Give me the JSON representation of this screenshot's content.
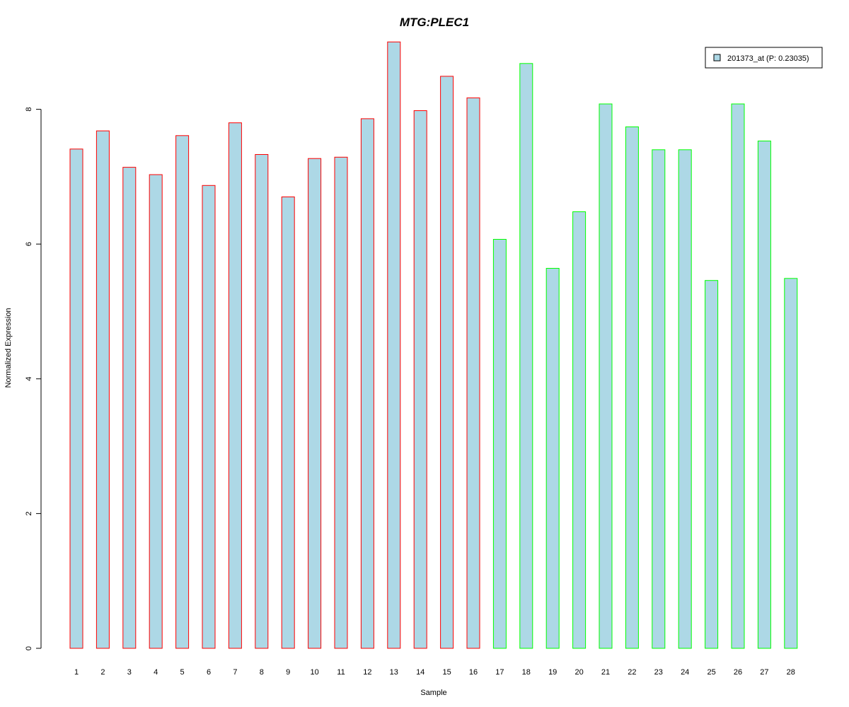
{
  "chart_data": {
    "type": "bar",
    "title": "MTG:PLEC1",
    "title_color": "#0000CC",
    "xlabel": "Sample",
    "ylabel": "Normalized Expression",
    "ylim": [
      0,
      9
    ],
    "yticks": [
      0,
      2,
      4,
      6,
      8
    ],
    "categories": [
      "1",
      "2",
      "3",
      "4",
      "5",
      "6",
      "7",
      "8",
      "9",
      "10",
      "11",
      "12",
      "13",
      "14",
      "15",
      "16",
      "17",
      "18",
      "19",
      "20",
      "21",
      "22",
      "23",
      "24",
      "25",
      "26",
      "27",
      "28"
    ],
    "series": [
      {
        "name": "201373_at (P: 0.23035)",
        "fill": "#ADD8E6",
        "values": [
          7.41,
          7.68,
          7.14,
          7.03,
          7.61,
          6.87,
          7.8,
          7.33,
          6.7,
          7.27,
          7.29,
          7.86,
          9.0,
          7.98,
          8.49,
          8.17,
          6.07,
          8.68,
          5.64,
          6.48,
          8.08,
          7.74,
          7.4,
          7.4,
          5.46,
          8.08,
          7.53,
          5.49
        ]
      }
    ],
    "bar_outline_colors": {
      "group1": "#FF0000",
      "group2": "#00FF00"
    },
    "group_sizes": [
      16,
      12
    ],
    "legend_position": "top-right",
    "grid": false
  }
}
